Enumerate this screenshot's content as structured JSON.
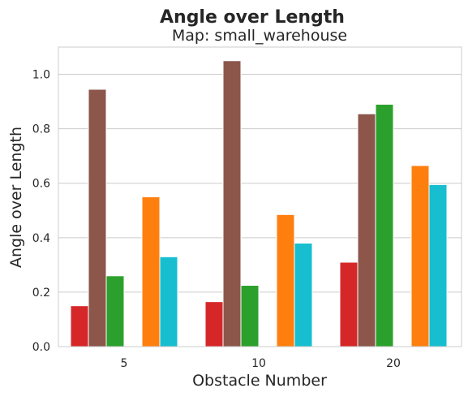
{
  "chart_data": {
    "type": "bar",
    "title": "Angle over Length",
    "subtitle": "Map: small_warehouse",
    "xlabel": "Obstacle Number",
    "ylabel": "Angle over Length",
    "categories": [
      "5",
      "10",
      "20"
    ],
    "ylim": [
      0,
      1.1
    ],
    "yticks": [
      0.0,
      0.2,
      0.4,
      0.6,
      0.8,
      1.0
    ],
    "ytick_labels": [
      "0.0",
      "0.2",
      "0.4",
      "0.6",
      "0.8",
      "1.0"
    ],
    "grid": true,
    "legend": "none",
    "series": [
      {
        "color": "#d62728",
        "values": [
          0.15,
          0.165,
          0.31
        ]
      },
      {
        "color": "#8c564b",
        "values": [
          0.945,
          1.05,
          0.855
        ]
      },
      {
        "color": "#2ca02c",
        "values": [
          0.26,
          0.225,
          0.89
        ]
      },
      {
        "color": "#ffffff",
        "values": [
          0.0,
          0.0,
          0.0
        ]
      },
      {
        "color": "#ff7f0e",
        "values": [
          0.55,
          0.485,
          0.665
        ]
      },
      {
        "color": "#17becf",
        "values": [
          0.33,
          0.38,
          0.595
        ]
      }
    ]
  }
}
